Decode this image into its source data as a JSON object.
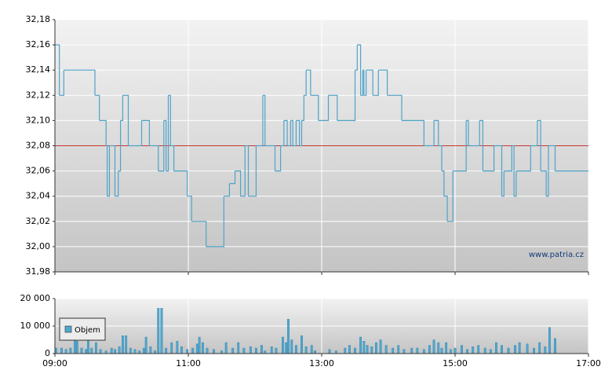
{
  "chart_data": [
    {
      "type": "line",
      "watermark": "www.patria.cz",
      "ylim": [
        31.98,
        32.18
      ],
      "yticks": [
        {
          "value": 31.98,
          "label": "31,98"
        },
        {
          "value": 32.0,
          "label": "32,00"
        },
        {
          "value": 32.02,
          "label": "32,02"
        },
        {
          "value": 32.04,
          "label": "32,04"
        },
        {
          "value": 32.06,
          "label": "32,06"
        },
        {
          "value": 32.08,
          "label": "32,08"
        },
        {
          "value": 32.1,
          "label": "32,10"
        },
        {
          "value": 32.12,
          "label": "32,12"
        },
        {
          "value": 32.14,
          "label": "32,14"
        },
        {
          "value": 32.16,
          "label": "32,16"
        },
        {
          "value": 32.18,
          "label": "32,18"
        }
      ],
      "xlim": [
        "09:00",
        "17:00"
      ],
      "grid": true,
      "reference_line": {
        "value": 32.08,
        "color": "#cc3333"
      },
      "series": [
        {
          "color": "#4fa3c9",
          "x": [
            "09:00",
            "09:04",
            "09:08",
            "09:36",
            "09:40",
            "09:46",
            "09:47",
            "09:49",
            "09:54",
            "09:57",
            "09:59",
            "10:01",
            "10:06",
            "10:18",
            "10:25",
            "10:33",
            "10:38",
            "10:40",
            "10:42",
            "10:44",
            "10:47",
            "10:59",
            "11:03",
            "11:16",
            "11:32",
            "11:37",
            "11:42",
            "11:47",
            "11:51",
            "11:54",
            "12:01",
            "12:07",
            "12:09",
            "12:18",
            "12:23",
            "12:26",
            "12:29",
            "12:32",
            "12:34",
            "12:37",
            "12:40",
            "12:42",
            "12:44",
            "12:46",
            "12:50",
            "12:57",
            "13:06",
            "13:14",
            "13:30",
            "13:32",
            "13:35",
            "13:37",
            "13:38",
            "13:40",
            "13:46",
            "13:51",
            "13:59",
            "14:12",
            "14:32",
            "14:41",
            "14:45",
            "14:48",
            "14:50",
            "14:53",
            "14:58",
            "15:10",
            "15:12",
            "15:22",
            "15:25",
            "15:35",
            "15:42",
            "15:44",
            "15:51",
            "15:53",
            "15:55",
            "16:08",
            "16:14",
            "16:17",
            "16:22",
            "16:24",
            "16:30",
            "17:00"
          ],
          "values": [
            32.16,
            32.12,
            32.14,
            32.12,
            32.1,
            32.08,
            32.04,
            32.08,
            32.04,
            32.06,
            32.1,
            32.12,
            32.08,
            32.1,
            32.08,
            32.06,
            32.1,
            32.06,
            32.12,
            32.08,
            32.06,
            32.04,
            32.02,
            32.0,
            32.04,
            32.05,
            32.06,
            32.04,
            32.08,
            32.04,
            32.08,
            32.12,
            32.08,
            32.06,
            32.08,
            32.1,
            32.08,
            32.1,
            32.08,
            32.1,
            32.08,
            32.1,
            32.12,
            32.14,
            32.12,
            32.1,
            32.12,
            32.1,
            32.14,
            32.16,
            32.12,
            32.14,
            32.12,
            32.14,
            32.12,
            32.14,
            32.12,
            32.1,
            32.08,
            32.1,
            32.08,
            32.06,
            32.04,
            32.02,
            32.06,
            32.1,
            32.08,
            32.1,
            32.06,
            32.08,
            32.04,
            32.06,
            32.08,
            32.04,
            32.06,
            32.08,
            32.1,
            32.06,
            32.04,
            32.08,
            32.06,
            32.06
          ]
        }
      ]
    },
    {
      "type": "bar",
      "ylim": [
        0,
        20000
      ],
      "yticks": [
        0,
        {
          "value": 10000,
          "label": "10 000"
        },
        {
          "value": 20000,
          "label": "20 000"
        }
      ],
      "xlim": [
        "09:00",
        "17:00"
      ],
      "xticks": [
        "09:00",
        "11:00",
        "13:00",
        "15:00",
        "17:00"
      ],
      "grid": true,
      "legend": "top-left",
      "series": [
        {
          "name": "Objem",
          "color": "#4fa8d0",
          "x": [
            "09:01",
            "09:06",
            "09:10",
            "09:14",
            "09:18",
            "09:20",
            "09:24",
            "09:28",
            "09:30",
            "09:33",
            "09:37",
            "09:41",
            "09:46",
            "09:51",
            "09:54",
            "09:58",
            "10:01",
            "10:04",
            "10:08",
            "10:12",
            "10:16",
            "10:20",
            "10:22",
            "10:26",
            "10:30",
            "10:33",
            "10:36",
            "10:40",
            "10:45",
            "10:50",
            "10:54",
            "10:59",
            "11:04",
            "11:08",
            "11:10",
            "11:13",
            "11:17",
            "11:23",
            "11:30",
            "11:34",
            "11:40",
            "11:45",
            "11:50",
            "11:56",
            "12:01",
            "12:06",
            "12:09",
            "12:15",
            "12:19",
            "12:25",
            "12:28",
            "12:30",
            "12:33",
            "12:37",
            "12:42",
            "12:46",
            "12:51",
            "12:54",
            "13:07",
            "13:13",
            "13:21",
            "13:25",
            "13:30",
            "13:35",
            "13:38",
            "13:41",
            "13:45",
            "13:49",
            "13:53",
            "13:58",
            "14:04",
            "14:09",
            "14:14",
            "14:21",
            "14:26",
            "14:32",
            "14:37",
            "14:41",
            "14:45",
            "14:48",
            "14:52",
            "14:56",
            "15:00",
            "15:06",
            "15:11",
            "15:16",
            "15:21",
            "15:27",
            "15:32",
            "15:37",
            "15:42",
            "15:48",
            "15:54",
            "15:58",
            "16:05",
            "16:11",
            "16:16",
            "16:21",
            "16:25",
            "16:30"
          ],
          "values": [
            2000,
            2000,
            1500,
            2000,
            5000,
            4500,
            2000,
            1500,
            5000,
            2000,
            4000,
            1500,
            1000,
            2000,
            1500,
            2500,
            6500,
            6500,
            2000,
            1500,
            1000,
            2000,
            6000,
            2500,
            1000,
            16500,
            16500,
            2000,
            4000,
            4500,
            2500,
            1500,
            2000,
            3500,
            6000,
            4000,
            2000,
            1500,
            1000,
            4000,
            2000,
            4000,
            2000,
            2500,
            2000,
            3000,
            1000,
            2500,
            2000,
            6000,
            4000,
            12500,
            5000,
            3000,
            6500,
            2500,
            3000,
            1000,
            1500,
            1000,
            2000,
            3000,
            2000,
            6000,
            4500,
            3000,
            2500,
            4000,
            5000,
            3000,
            2000,
            3000,
            1500,
            2000,
            2000,
            1500,
            3000,
            5000,
            4000,
            2000,
            4000,
            1500,
            2000,
            3000,
            1500,
            2500,
            3000,
            2000,
            1500,
            4000,
            3000,
            2000,
            3000,
            4000,
            3500,
            2000,
            4000,
            2500,
            9500,
            5500
          ]
        }
      ]
    }
  ]
}
